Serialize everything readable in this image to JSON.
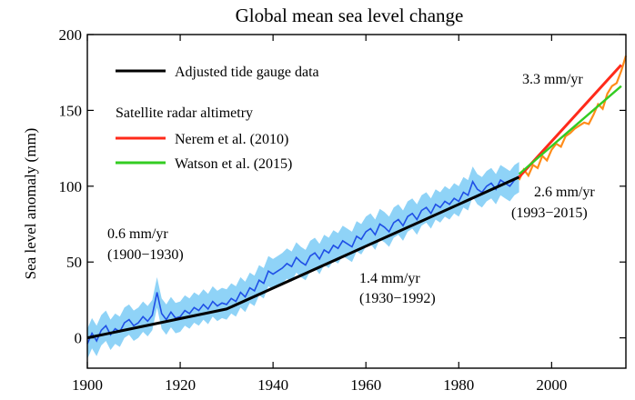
{
  "chart_data": {
    "type": "line",
    "title": "Global mean sea level change",
    "xlabel": "",
    "ylabel": "Sea level anomaly (mm)",
    "xlim": [
      1900,
      2016
    ],
    "ylim": [
      -20,
      200
    ],
    "xticks": [
      1900,
      1920,
      1940,
      1960,
      1980,
      2000
    ],
    "yticks": [
      0,
      50,
      100,
      150,
      200
    ],
    "grid": false,
    "legend_position": "top-left",
    "legend": {
      "tide_gauge": "Adjusted tide gauge data",
      "satellite_heading": "Satellite radar altimetry",
      "nerem": "Nerem et al. (2010)",
      "watson": "Watson et al. (2015)"
    },
    "colors": {
      "tide_gauge_trend": "#000000",
      "tide_gauge_series": "#1f4fe6",
      "tide_gauge_uncertainty": "#8fd3f7",
      "nerem": "#ff2a1a",
      "watson": "#33cc22",
      "satellite_raw": "#ff8c1a"
    },
    "series": [
      {
        "name": "Adjusted tide gauge data",
        "kind": "piecewise-trend",
        "x": [
          1900,
          1930,
          1993
        ],
        "y": [
          0,
          19,
          106
        ]
      },
      {
        "name": "Nerem et al. (2010)",
        "kind": "trend",
        "x": [
          1993,
          2015
        ],
        "y": [
          106,
          180
        ]
      },
      {
        "name": "Watson et al. (2015)",
        "kind": "trend",
        "x": [
          1993,
          2015
        ],
        "y": [
          108,
          166
        ]
      }
    ],
    "tide_gauge_series": {
      "x": [
        1900,
        1901,
        1902,
        1903,
        1904,
        1905,
        1906,
        1907,
        1908,
        1909,
        1910,
        1911,
        1912,
        1913,
        1914,
        1915,
        1916,
        1917,
        1918,
        1919,
        1920,
        1921,
        1922,
        1923,
        1924,
        1925,
        1926,
        1927,
        1928,
        1929,
        1930,
        1931,
        1932,
        1933,
        1934,
        1935,
        1936,
        1937,
        1938,
        1939,
        1940,
        1941,
        1942,
        1943,
        1944,
        1945,
        1946,
        1947,
        1948,
        1949,
        1950,
        1951,
        1952,
        1953,
        1954,
        1955,
        1956,
        1957,
        1958,
        1959,
        1960,
        1961,
        1962,
        1963,
        1964,
        1965,
        1966,
        1967,
        1968,
        1969,
        1970,
        1971,
        1972,
        1973,
        1974,
        1975,
        1976,
        1977,
        1978,
        1979,
        1980,
        1981,
        1982,
        1983,
        1984,
        1985,
        1986,
        1987,
        1988,
        1989,
        1990,
        1991,
        1992,
        1993
      ],
      "y": [
        -4,
        3,
        -2,
        5,
        8,
        2,
        6,
        4,
        10,
        12,
        8,
        10,
        14,
        11,
        15,
        30,
        16,
        12,
        17,
        13,
        14,
        18,
        16,
        20,
        18,
        22,
        19,
        24,
        21,
        23,
        22,
        26,
        24,
        30,
        27,
        33,
        31,
        38,
        36,
        44,
        42,
        44,
        46,
        49,
        47,
        53,
        50,
        48,
        54,
        56,
        52,
        58,
        56,
        61,
        59,
        64,
        62,
        60,
        67,
        65,
        70,
        72,
        68,
        75,
        73,
        70,
        76,
        78,
        74,
        80,
        82,
        78,
        84,
        86,
        82,
        88,
        86,
        90,
        88,
        92,
        90,
        96,
        94,
        103,
        98,
        96,
        100,
        102,
        98,
        104,
        102,
        100,
        104,
        106
      ],
      "uncertainty": 10
    },
    "satellite_series": {
      "x": [
        1993,
        1994,
        1995,
        1996,
        1997,
        1998,
        1999,
        2000,
        2001,
        2002,
        2003,
        2004,
        2005,
        2006,
        2007,
        2008,
        2009,
        2010,
        2011,
        2012,
        2013,
        2014,
        2015,
        2016
      ],
      "y": [
        104,
        111,
        107,
        114,
        112,
        120,
        117,
        124,
        128,
        126,
        133,
        135,
        138,
        140,
        142,
        141,
        147,
        154,
        151,
        161,
        166,
        168,
        176,
        186
      ]
    },
    "annotations": [
      {
        "text": "0.6 mm/yr",
        "anchor": "left-mid"
      },
      {
        "text": "(1900−1930)",
        "anchor": "left-mid"
      },
      {
        "text": "1.4 mm/yr",
        "anchor": "center-bottom"
      },
      {
        "text": "(1930−1992)",
        "anchor": "center-bottom"
      },
      {
        "text": "3.3 mm/yr",
        "anchor": "top-right"
      },
      {
        "text": "2.6 mm/yr",
        "anchor": "right-mid"
      },
      {
        "text": "(1993−2015)",
        "anchor": "right-mid"
      }
    ]
  }
}
